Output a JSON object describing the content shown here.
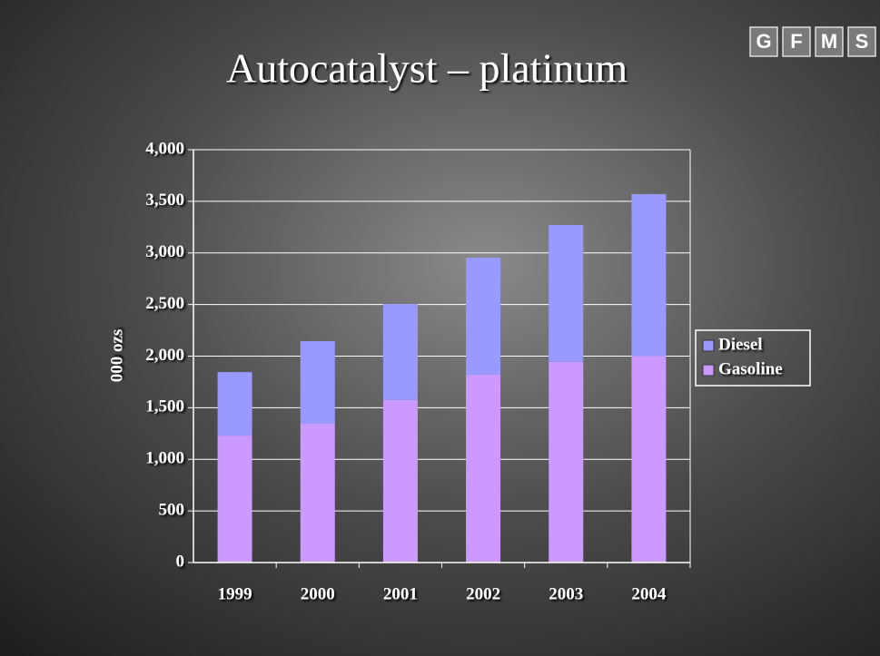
{
  "logo": [
    "G",
    "F",
    "M",
    "S"
  ],
  "chart_data": {
    "type": "stacked-bar",
    "title": "Autocatalyst – platinum",
    "y_label": "000 ozs",
    "categories": [
      "1999",
      "2000",
      "2001",
      "2002",
      "2003",
      "2004"
    ],
    "series": [
      {
        "name": "Gasoline",
        "color": "#cc99ff",
        "values": [
          1230,
          1345,
          1575,
          1820,
          1945,
          2000
        ]
      },
      {
        "name": "Diesel",
        "color": "#9999ff",
        "values": [
          615,
          800,
          930,
          1135,
          1325,
          1570
        ]
      }
    ],
    "ylim": [
      0,
      4000
    ],
    "yticks": [
      0,
      500,
      {
        "value": 1000,
        "label": "1,000"
      },
      {
        "value": 1500,
        "label": "1,500"
      },
      {
        "value": 2000,
        "label": "2,000"
      },
      {
        "value": 2500,
        "label": "2,500"
      },
      {
        "value": 3000,
        "label": "3,000"
      },
      {
        "value": 3500,
        "label": "3,500"
      },
      {
        "value": 4000,
        "label": "4,000"
      }
    ],
    "grid": true,
    "legend": "right"
  }
}
